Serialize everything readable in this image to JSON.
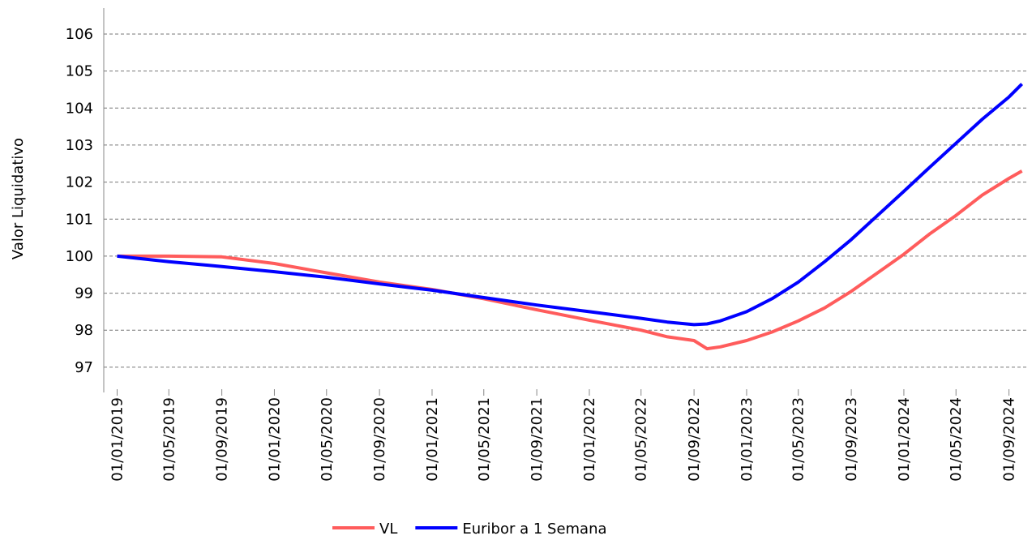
{
  "chart_data": {
    "type": "line",
    "y_label": "Valor Liquidativo",
    "x": [
      "01/01/2019",
      "01/05/2019",
      "01/09/2019",
      "01/01/2020",
      "01/05/2020",
      "01/09/2020",
      "01/01/2021",
      "01/05/2021",
      "01/09/2021",
      "01/01/2022",
      "01/05/2022",
      "01/07/2022",
      "01/09/2022",
      "01/10/2022",
      "01/11/2022",
      "01/01/2023",
      "01/03/2023",
      "01/05/2023",
      "01/07/2023",
      "01/09/2023",
      "01/11/2023",
      "01/01/2024",
      "01/03/2024",
      "01/05/2024",
      "01/07/2024",
      "01/09/2024",
      "01/10/2024"
    ],
    "series": [
      {
        "name": "VL",
        "color": "#ff5c5c",
        "values": [
          100.0,
          100.0,
          99.98,
          99.8,
          99.55,
          99.3,
          99.1,
          98.85,
          98.55,
          98.27,
          98.0,
          97.82,
          97.72,
          97.5,
          97.55,
          97.72,
          97.95,
          98.25,
          98.6,
          99.05,
          99.55,
          100.05,
          100.6,
          101.1,
          101.65,
          102.1,
          102.3
        ]
      },
      {
        "name": "Euribor a 1 Semana",
        "color": "#0000ff",
        "values": [
          100.0,
          99.85,
          99.72,
          99.58,
          99.43,
          99.25,
          99.08,
          98.88,
          98.68,
          98.5,
          98.32,
          98.22,
          98.15,
          98.17,
          98.25,
          98.5,
          98.85,
          99.3,
          99.85,
          100.45,
          101.1,
          101.75,
          102.4,
          103.05,
          103.7,
          104.3,
          104.65
        ]
      }
    ],
    "xlim": [
      "01/12/2018",
      "15/10/2024"
    ],
    "xticks": [
      "01/01/2019",
      "01/05/2019",
      "01/09/2019",
      "01/01/2020",
      "01/05/2020",
      "01/09/2020",
      "01/01/2021",
      "01/05/2021",
      "01/09/2021",
      "01/01/2022",
      "01/05/2022",
      "01/09/2022",
      "01/01/2023",
      "01/05/2023",
      "01/09/2023",
      "01/01/2024",
      "01/05/2024",
      "01/09/2024"
    ],
    "ylim": [
      96.45,
      106.7
    ],
    "yticks": [
      97,
      98,
      99,
      100,
      101,
      102,
      103,
      104,
      105,
      106
    ],
    "grid": true,
    "legend": "bottom"
  }
}
